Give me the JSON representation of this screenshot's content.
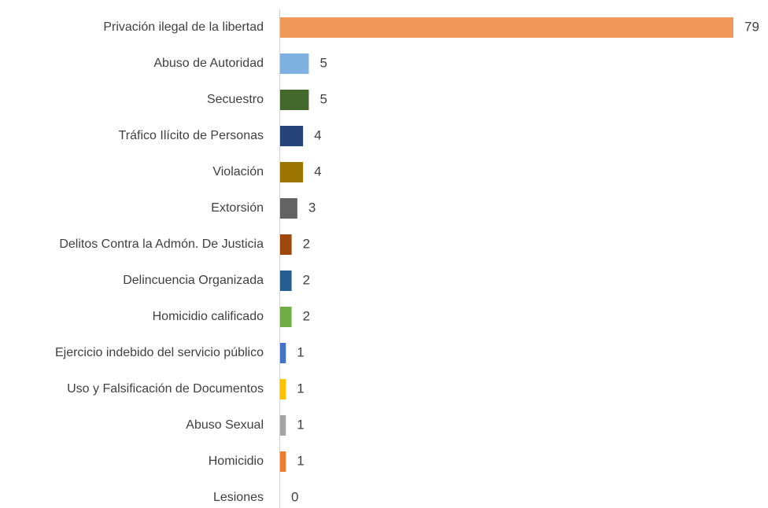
{
  "chart_data": {
    "type": "bar",
    "orientation": "horizontal",
    "categories": [
      "Privación ilegal de la libertad",
      "Abuso de Autoridad",
      "Secuestro",
      "Tráfico Ilícito de Personas",
      "Violación",
      "Extorsión",
      "Delitos Contra la Admón. De Justicia",
      "Delincuencia Organizada",
      "Homicidio calificado",
      "Ejercicio indebido del servicio público",
      "Uso y Falsificación de Documentos",
      "Abuso Sexual",
      "Homicidio",
      "Lesiones"
    ],
    "values": [
      79,
      5,
      5,
      4,
      4,
      3,
      2,
      2,
      2,
      1,
      1,
      1,
      1,
      0
    ],
    "colors": [
      "#f0995a",
      "#7eb0e0",
      "#43682b",
      "#26437a",
      "#9b7400",
      "#636363",
      "#9e480e",
      "#255e91",
      "#70ad47",
      "#4472c4",
      "#ffc000",
      "#a5a5a5",
      "#ed7d31",
      "#5b9bd5"
    ]
  }
}
